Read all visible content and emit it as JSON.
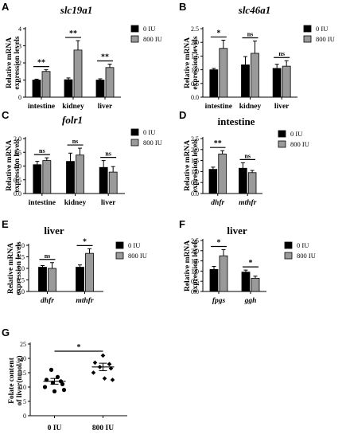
{
  "colors": {
    "series0": "#000000",
    "series1": "#9a9a9a",
    "error": "#000000"
  },
  "chart_data": [
    {
      "id": "A",
      "type": "bar",
      "title": "slc19a1",
      "title_italic": true,
      "ylabel": "Relative mRNA expression levels",
      "yticks": [
        0,
        1,
        2,
        3,
        4
      ],
      "ylim": [
        0,
        4
      ],
      "categories": [
        "intestine",
        "kidney",
        "liver"
      ],
      "category_italic": false,
      "series": [
        {
          "name": "0 IU",
          "values": [
            1.0,
            1.02,
            1.0
          ],
          "errors": [
            0.05,
            0.1,
            0.07
          ]
        },
        {
          "name": "800 IU",
          "values": [
            1.5,
            2.75,
            1.73
          ],
          "errors": [
            0.1,
            0.55,
            0.2
          ]
        }
      ],
      "significance": [
        "**",
        "**",
        "**"
      ]
    },
    {
      "id": "B",
      "type": "bar",
      "title": "slc46a1",
      "title_italic": true,
      "ylabel": "Relative mRNA expression levels",
      "yticks": [
        0.0,
        0.5,
        1.0,
        1.5,
        2.0,
        2.5
      ],
      "ylim": [
        0,
        2.5
      ],
      "categories": [
        "intestine",
        "kidney",
        "liver"
      ],
      "category_italic": false,
      "series": [
        {
          "name": "0 IU",
          "values": [
            1.0,
            1.18,
            1.05
          ],
          "errors": [
            0.05,
            0.3,
            0.15
          ]
        },
        {
          "name": "800 IU",
          "values": [
            1.78,
            1.6,
            1.13
          ],
          "errors": [
            0.3,
            0.45,
            0.2
          ]
        }
      ],
      "significance": [
        "*",
        "ns",
        "ns"
      ]
    },
    {
      "id": "C",
      "type": "bar",
      "title": "folr1",
      "title_italic": true,
      "ylabel": "Relative mRNA expression levels",
      "yticks": [
        0.0,
        0.5,
        1.0,
        1.5,
        2.0
      ],
      "ylim": [
        0,
        2.0
      ],
      "categories": [
        "intestine",
        "kidney",
        "liver"
      ],
      "category_italic": false,
      "series": [
        {
          "name": "0 IU",
          "values": [
            1.05,
            1.17,
            0.95
          ],
          "errors": [
            0.12,
            0.3,
            0.25
          ]
        },
        {
          "name": "800 IU",
          "values": [
            1.2,
            1.4,
            0.78
          ],
          "errors": [
            0.1,
            0.25,
            0.2
          ]
        }
      ],
      "significance": [
        "ns",
        "ns",
        "ns"
      ]
    },
    {
      "id": "D",
      "type": "bar",
      "title": "intestine",
      "title_italic": false,
      "ylabel": "Relative mRNA expression levels",
      "yticks": [
        0.0,
        0.5,
        1.0,
        1.5,
        2.0,
        2.5
      ],
      "ylim": [
        0,
        2.5
      ],
      "categories": [
        "dhfr",
        "mthfr"
      ],
      "category_italic": true,
      "series": [
        {
          "name": "0 IU",
          "values": [
            1.1,
            1.15
          ],
          "errors": [
            0.1,
            0.25
          ]
        },
        {
          "name": "800 IU",
          "values": [
            1.8,
            0.95
          ],
          "errors": [
            0.15,
            0.1
          ]
        }
      ],
      "significance": [
        "**",
        "ns"
      ]
    },
    {
      "id": "E",
      "type": "bar",
      "title": "liver",
      "title_italic": false,
      "ylabel": "Relative mRNA expression levels",
      "yticks": [
        0.0,
        0.5,
        1.0,
        1.5,
        2.0
      ],
      "ylim": [
        0,
        2.0
      ],
      "categories": [
        "dhfr",
        "mthfr"
      ],
      "category_italic": true,
      "series": [
        {
          "name": "0 IU",
          "values": [
            1.05,
            1.05
          ],
          "errors": [
            0.07,
            0.1
          ]
        },
        {
          "name": "800 IU",
          "values": [
            1.0,
            1.65
          ],
          "errors": [
            0.25,
            0.2
          ]
        }
      ],
      "significance": [
        "ns",
        "*"
      ]
    },
    {
      "id": "F",
      "type": "bar",
      "title": "liver",
      "title_italic": false,
      "ylabel": "Relative mRNA expression levels",
      "yticks": [
        0.0,
        0.5,
        1.0,
        1.5,
        2.0,
        2.5
      ],
      "ylim": [
        0,
        2.5
      ],
      "categories": [
        "fpgs",
        "ggh"
      ],
      "category_italic": true,
      "series": [
        {
          "name": "0 IU",
          "values": [
            1.08,
            0.95
          ],
          "errors": [
            0.15,
            0.1
          ]
        },
        {
          "name": "800 IU",
          "values": [
            1.75,
            0.65
          ],
          "errors": [
            0.3,
            0.1
          ]
        }
      ],
      "significance": [
        "*",
        "*"
      ]
    },
    {
      "id": "G",
      "type": "scatter",
      "title": "",
      "ylabel": "Folate content of liver(nmol/g)",
      "yticks": [
        0,
        5,
        10,
        15,
        20,
        25
      ],
      "ylim": [
        0,
        25
      ],
      "categories": [
        "0 IU",
        "800 IU"
      ],
      "groups": [
        {
          "name": "0 IU",
          "values": [
            16,
            13.5,
            12.5,
            12,
            11.5,
            11,
            10,
            9,
            8.5
          ],
          "mean": 12,
          "sem": 1.0
        },
        {
          "name": "800 IU",
          "values": [
            21,
            18.5,
            18,
            17,
            16.5,
            15,
            13,
            12.5
          ],
          "mean": 17,
          "sem": 1.3
        }
      ],
      "significance": [
        "*"
      ]
    }
  ]
}
